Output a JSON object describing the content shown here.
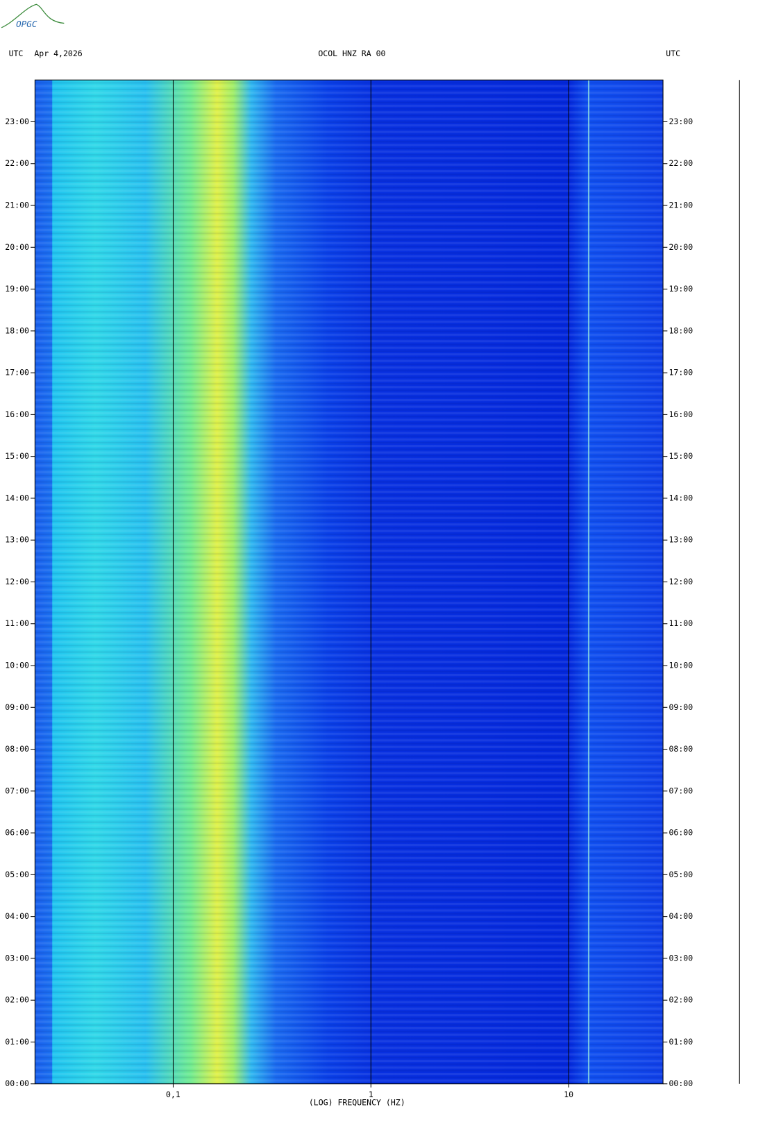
{
  "logo": "OPGC",
  "chart_data": {
    "type": "spectrogram",
    "title": "OCOL HNZ RA 00",
    "left_label": "UTC",
    "date": "Apr 4,2026",
    "right_label": "UTC",
    "xlabel": "(LOG) FREQUENCY (HZ)",
    "xscale": "log",
    "xlim": [
      0.02,
      30
    ],
    "xticks": [
      {
        "value": 0.1,
        "label": "0,1"
      },
      1,
      10
    ],
    "ylim": [
      0,
      24
    ],
    "yticks": [
      {
        "value": 0,
        "label": "00:00"
      },
      {
        "value": 1,
        "label": "01:00"
      },
      {
        "value": 2,
        "label": "02:00"
      },
      {
        "value": 3,
        "label": "03:00"
      },
      {
        "value": 4,
        "label": "04:00"
      },
      {
        "value": 5,
        "label": "05:00"
      },
      {
        "value": 6,
        "label": "06:00"
      },
      {
        "value": 7,
        "label": "07:00"
      },
      {
        "value": 8,
        "label": "08:00"
      },
      {
        "value": 9,
        "label": "09:00"
      },
      {
        "value": 10,
        "label": "10:00"
      },
      {
        "value": 11,
        "label": "11:00"
      },
      {
        "value": 12,
        "label": "12:00"
      },
      {
        "value": 13,
        "label": "13:00"
      },
      {
        "value": 14,
        "label": "14:00"
      },
      {
        "value": 15,
        "label": "15:00"
      },
      {
        "value": 16,
        "label": "16:00"
      },
      {
        "value": 17,
        "label": "17:00"
      },
      {
        "value": 18,
        "label": "18:00"
      },
      {
        "value": 19,
        "label": "19:00"
      },
      {
        "value": 20,
        "label": "20:00"
      },
      {
        "value": 21,
        "label": "21:00"
      },
      {
        "value": 22,
        "label": "22:00"
      },
      {
        "value": 23,
        "label": "23:00"
      }
    ],
    "grid": true
  }
}
